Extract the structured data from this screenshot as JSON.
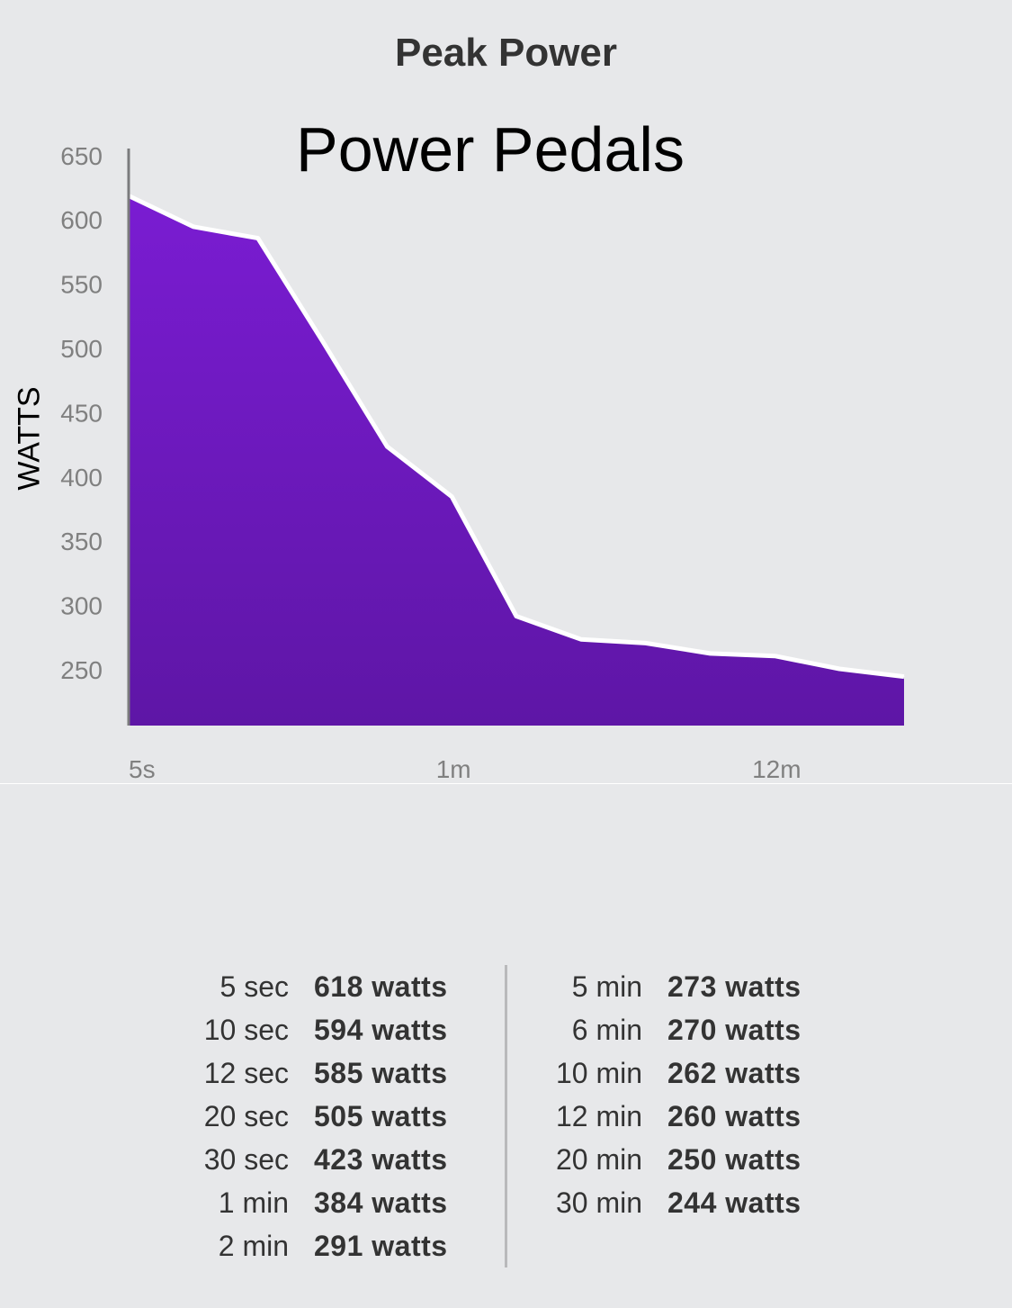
{
  "header": {
    "title": "Peak Power"
  },
  "chart_data": {
    "type": "area",
    "title": "Power Pedals",
    "ylabel": "WATTS",
    "xlabel": "",
    "x_tick_labels": [
      "5s",
      "1m",
      "12m"
    ],
    "y_ticks": [
      250,
      300,
      350,
      400,
      450,
      500,
      550,
      600,
      650
    ],
    "ylim": [
      206,
      657
    ],
    "grid": false,
    "fill_color_top": "#7a1cd2",
    "fill_color_bottom": "#5e16a6",
    "line_color": "#ffffff",
    "x": [
      "5 sec",
      "10 sec",
      "12 sec",
      "20 sec",
      "30 sec",
      "1 min",
      "2 min",
      "5 min",
      "6 min",
      "10 min",
      "12 min",
      "20 min",
      "30 min"
    ],
    "values": [
      618,
      594,
      585,
      505,
      423,
      384,
      291,
      273,
      270,
      262,
      260,
      250,
      244
    ]
  },
  "stats": {
    "left": [
      {
        "duration": "5 sec",
        "value": "618 watts"
      },
      {
        "duration": "10 sec",
        "value": "594 watts"
      },
      {
        "duration": "12 sec",
        "value": "585 watts"
      },
      {
        "duration": "20 sec",
        "value": "505 watts"
      },
      {
        "duration": "30 sec",
        "value": "423 watts"
      },
      {
        "duration": "1 min",
        "value": "384 watts"
      },
      {
        "duration": "2 min",
        "value": "291 watts"
      }
    ],
    "right": [
      {
        "duration": "5 min",
        "value": "273 watts"
      },
      {
        "duration": "6 min",
        "value": "270 watts"
      },
      {
        "duration": "10 min",
        "value": "262 watts"
      },
      {
        "duration": "12 min",
        "value": "260 watts"
      },
      {
        "duration": "20 min",
        "value": "250 watts"
      },
      {
        "duration": "30 min",
        "value": "244 watts"
      }
    ]
  }
}
